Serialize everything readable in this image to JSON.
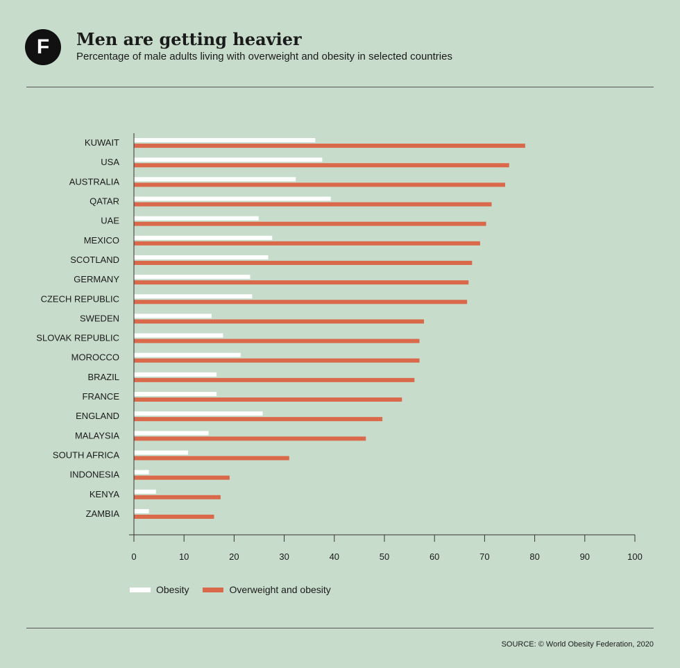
{
  "header": {
    "logo_letter": "F",
    "title": "Men are getting heavier",
    "subtitle": "Percentage of male adults living with overweight and obesity in selected countries"
  },
  "source": "SOURCE: © World Obesity Federation, 2020",
  "colors": {
    "obesity": "#ffffff",
    "overweight": "#d9694a",
    "axis": "#333333"
  },
  "chart_data": {
    "type": "bar",
    "orientation": "horizontal",
    "title": "Men are getting heavier",
    "subtitle": "Percentage of male adults living with overweight and obesity in selected countries",
    "categories": [
      "KUWAIT",
      "USA",
      "AUSTRALIA",
      "QATAR",
      "UAE",
      "MEXICO",
      "SCOTLAND",
      "GERMANY",
      "CZECH REPUBLIC",
      "SWEDEN",
      "SLOVAK REPUBLIC",
      "MOROCCO",
      "BRAZIL",
      "FRANCE",
      "ENGLAND",
      "MALAYSIA",
      "SOUTH AFRICA",
      "INDONESIA",
      "KENYA",
      "ZAMBIA"
    ],
    "series": [
      {
        "name": "Obesity",
        "values": [
          36.2,
          37.6,
          32.3,
          39.3,
          24.9,
          27.6,
          26.8,
          23.2,
          23.6,
          15.5,
          17.8,
          21.3,
          16.5,
          16.5,
          25.7,
          14.9,
          10.8,
          3.0,
          4.4,
          3.0
        ]
      },
      {
        "name": "Overweight and obesity",
        "values": [
          78.1,
          74.9,
          74.1,
          71.4,
          70.3,
          69.1,
          67.5,
          66.8,
          66.5,
          57.9,
          57.0,
          57.0,
          56.0,
          53.5,
          49.6,
          46.3,
          31.0,
          19.1,
          17.3,
          16.0
        ]
      }
    ],
    "xlim": [
      0,
      100
    ],
    "xticks": [
      0,
      10,
      20,
      30,
      40,
      50,
      60,
      70,
      80,
      90,
      100
    ],
    "grid": false,
    "legend_position": "bottom-left"
  }
}
